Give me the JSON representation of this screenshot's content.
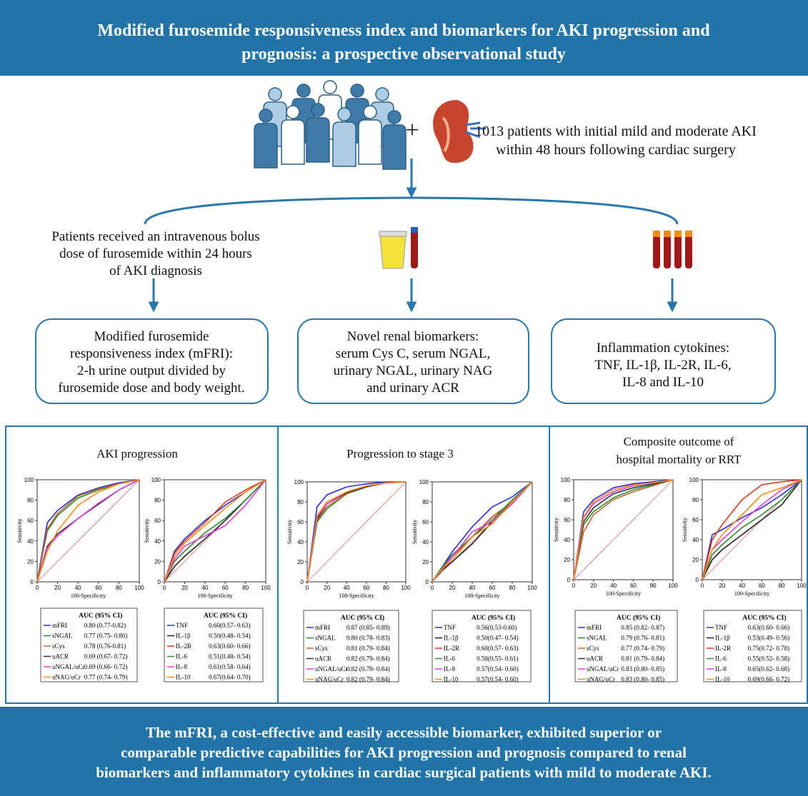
{
  "header": {
    "title": [
      "Modified furosemide responsiveness index and biomarkers for AKI progression and",
      "prognosis: a prospective observational study"
    ]
  },
  "cohort": {
    "plus": "+",
    "text": [
      "1013 patients with initial mild and moderate AKI",
      "within 48 hours following cardiac surgery"
    ]
  },
  "branches": [
    {
      "description": [
        "Patients received an intravenous bolus",
        "dose of furosemide within 24 hours",
        "of AKI diagnosis"
      ],
      "box": [
        "Modified furosemide",
        "responsiveness index (mFRI):",
        "2-h urine output divided by",
        "furosemide dose and body weight."
      ]
    },
    {
      "box": [
        "Novel renal biomarkers:",
        "serum Cys C, serum NGAL,",
        "urinary NGAL, urinary NAG",
        "and urinary ACR"
      ]
    },
    {
      "box": [
        "Inflammation cytokines:",
        "TNF, IL-1β,  IL-2R, IL-6,",
        "IL-8  and IL-10"
      ]
    }
  ],
  "panels": [
    {
      "title": [
        "AKI progression"
      ],
      "charts": [
        {
          "type": "line",
          "xlabel": "100-Specificity",
          "ylabel": "Sensitivity",
          "legend_title": "AUC (95% CI)",
          "x": [
            0,
            10,
            20,
            40,
            60,
            80,
            100
          ],
          "xlim": [
            0,
            100
          ],
          "ylim": [
            0,
            100
          ],
          "xticks": [
            0,
            20,
            40,
            60,
            80,
            100
          ],
          "yticks": [
            0,
            20,
            40,
            60,
            80,
            100
          ],
          "series": [
            {
              "name": "mFRI",
              "color": "#2b2bd6",
              "auc": "0.80 (0.77-0.82)",
              "values": [
                0,
                58,
                70,
                85,
                92,
                97,
                100
              ]
            },
            {
              "name": "sNGAL",
              "color": "#2e8b2e",
              "auc": "0.77 (0.75- 0.80)",
              "values": [
                0,
                50,
                65,
                82,
                90,
                96,
                100
              ]
            },
            {
              "name": "sCys",
              "color": "#c8642a",
              "auc": "0.78 (0.76-0.81)",
              "values": [
                0,
                52,
                67,
                84,
                91,
                96,
                100
              ]
            },
            {
              "name": "uACR",
              "color": "#333333",
              "auc": "0.69 (0.67- 0.72)",
              "values": [
                0,
                35,
                47,
                62,
                76,
                90,
                100
              ]
            },
            {
              "name": "uNGAL/uCr",
              "color": "#e03ce0",
              "auc": "0.69 (0.66- 0.72)",
              "values": [
                0,
                33,
                45,
                62,
                77,
                90,
                100
              ]
            },
            {
              "name": "uNAG/uCr",
              "color": "#ff8c1a",
              "auc": "0.77 (0.74- 0.79)",
              "values": [
                0,
                30,
                50,
                75,
                88,
                96,
                100
              ]
            }
          ]
        },
        {
          "type": "line",
          "xlabel": "100-Specificity",
          "ylabel": "Sensitivity",
          "legend_title": "AUC (95% CI)",
          "x": [
            0,
            10,
            20,
            40,
            60,
            80,
            100
          ],
          "xlim": [
            0,
            100
          ],
          "ylim": [
            0,
            100
          ],
          "xticks": [
            0,
            20,
            40,
            60,
            80,
            100
          ],
          "yticks": [
            0,
            20,
            40,
            60,
            80,
            100
          ],
          "series": [
            {
              "name": "TNF",
              "color": "#2b2bd6",
              "auc": "0.60(0.57- 0.63)",
              "values": [
                0,
                30,
                42,
                60,
                75,
                88,
                100
              ]
            },
            {
              "name": "IL-1β",
              "color": "#222222",
              "auc": "0.50(0.48- 0.54)",
              "values": [
                0,
                15,
                25,
                42,
                60,
                80,
                100
              ]
            },
            {
              "name": "IL-2R",
              "color": "#d83a1e",
              "auc": "0.63(0.60- 0.66)",
              "values": [
                0,
                28,
                40,
                58,
                78,
                90,
                100
              ]
            },
            {
              "name": "IL-6",
              "color": "#2e8b2e",
              "auc": "0.51(0.48- 0.54)",
              "values": [
                0,
                20,
                30,
                48,
                62,
                80,
                100
              ]
            },
            {
              "name": "IL-8",
              "color": "#e03ce0",
              "auc": "0.61(0.58- 0.64)",
              "values": [
                0,
                22,
                35,
                45,
                55,
                75,
                100
              ]
            },
            {
              "name": "IL-10",
              "color": "#ff8c1a",
              "auc": "0.67(0.64- 0.70)",
              "values": [
                0,
                25,
                38,
                55,
                72,
                88,
                100
              ]
            }
          ]
        }
      ]
    },
    {
      "title": [
        "Progression to stage 3"
      ],
      "charts": [
        {
          "type": "line",
          "xlabel": "100-Specificity",
          "ylabel": "Sensitivity",
          "legend_title": "AUC (95% CI)",
          "x": [
            0,
            10,
            20,
            40,
            60,
            80,
            100
          ],
          "xlim": [
            0,
            100
          ],
          "ylim": [
            0,
            100
          ],
          "xticks": [
            0,
            20,
            40,
            60,
            80,
            100
          ],
          "yticks": [
            0,
            20,
            40,
            60,
            80,
            100
          ],
          "series": [
            {
              "name": "mFRI",
              "color": "#2b2bd6",
              "auc": "0.87 (0.85- 0.89)",
              "values": [
                0,
                75,
                87,
                95,
                98,
                100,
                100
              ]
            },
            {
              "name": "sNGAL",
              "color": "#2e8b2e",
              "auc": "0.80 (0.78- 0.83)",
              "values": [
                0,
                60,
                73,
                88,
                95,
                99,
                100
              ]
            },
            {
              "name": "sCys",
              "color": "#c8642a",
              "auc": "0.81 (0.79- 0.84)",
              "values": [
                0,
                62,
                75,
                88,
                96,
                99,
                100
              ]
            },
            {
              "name": "uACR",
              "color": "#333333",
              "auc": "0.82 (0.79- 0.84)",
              "values": [
                0,
                63,
                78,
                89,
                95,
                99,
                100
              ]
            },
            {
              "name": "uNGAL/uCr",
              "color": "#e03ce0",
              "auc": "0.82 (0.79- 0.84)",
              "values": [
                0,
                65,
                78,
                90,
                96,
                99,
                100
              ]
            },
            {
              "name": "uNAG/uCr",
              "color": "#ff8c1a",
              "auc": "0.82 (0.79- 0.84)",
              "values": [
                0,
                66,
                80,
                90,
                96,
                99,
                100
              ]
            }
          ]
        },
        {
          "type": "line",
          "xlabel": "100-Specificity",
          "ylabel": "Sensitivity",
          "legend_title": "AUC (95% CI)",
          "x": [
            0,
            10,
            20,
            40,
            60,
            80,
            100
          ],
          "xlim": [
            0,
            100
          ],
          "ylim": [
            0,
            100
          ],
          "xticks": [
            0,
            20,
            40,
            60,
            80,
            100
          ],
          "yticks": [
            0,
            20,
            40,
            60,
            80,
            100
          ],
          "series": [
            {
              "name": "TNF",
              "color": "#2b2bd6",
              "auc": "0.56(0.53-0.60)",
              "values": [
                0,
                15,
                30,
                55,
                75,
                85,
                100
              ]
            },
            {
              "name": "IL-1β",
              "color": "#222222",
              "auc": "0.50(0.47- 0.54)",
              "values": [
                0,
                12,
                20,
                38,
                60,
                80,
                100
              ]
            },
            {
              "name": "IL-2R",
              "color": "#d83a1e",
              "auc": "0.60(0.57- 0.63)",
              "values": [
                0,
                14,
                25,
                45,
                65,
                80,
                100
              ]
            },
            {
              "name": "IL-6",
              "color": "#2e8b2e",
              "auc": "0.58(0.55- 0.61)",
              "values": [
                0,
                15,
                27,
                45,
                62,
                82,
                100
              ]
            },
            {
              "name": "IL-8",
              "color": "#e03ce0",
              "auc": "0.57(0.54- 0.60)",
              "values": [
                0,
                13,
                25,
                50,
                60,
                78,
                100
              ]
            },
            {
              "name": "IL-10",
              "color": "#ff8c1a",
              "auc": "0.57(0.54- 0.60)",
              "values": [
                0,
                13,
                22,
                45,
                58,
                80,
                100
              ]
            }
          ]
        }
      ]
    },
    {
      "title": [
        "Composite outcome of",
        "hospital mortality or RRT"
      ],
      "charts": [
        {
          "type": "line",
          "xlabel": "100-Specificity",
          "ylabel": "Sensitivity",
          "legend_title": "AUC (95% CI)",
          "x": [
            0,
            10,
            20,
            40,
            60,
            80,
            100
          ],
          "xlim": [
            0,
            100
          ],
          "ylim": [
            0,
            100
          ],
          "xticks": [
            0,
            20,
            40,
            60,
            80,
            100
          ],
          "yticks": [
            0,
            20,
            40,
            60,
            80,
            100
          ],
          "series": [
            {
              "name": "mFRI",
              "color": "#2b2bd6",
              "auc": "0.85 (0.82- 0.87)",
              "values": [
                0,
                68,
                80,
                92,
                96,
                98,
                100
              ]
            },
            {
              "name": "sNGAL",
              "color": "#2e8b2e",
              "auc": "0.79 (0.76- 0.81)",
              "values": [
                0,
                55,
                68,
                82,
                90,
                95,
                100
              ]
            },
            {
              "name": "sCys",
              "color": "#c8642a",
              "auc": "0.77 (0.74- 0.79)",
              "values": [
                0,
                48,
                65,
                80,
                88,
                94,
                100
              ]
            },
            {
              "name": "uACR",
              "color": "#333333",
              "auc": "0.81 (0.79- 0.84)",
              "values": [
                0,
                58,
                72,
                86,
                92,
                96,
                100
              ]
            },
            {
              "name": "uNGAL/uCr",
              "color": "#e03ce0",
              "auc": "0.83 (0.80- 0.85)",
              "values": [
                0,
                62,
                76,
                88,
                94,
                97,
                100
              ]
            },
            {
              "name": "uNAG/uCr",
              "color": "#ff8c1a",
              "auc": "0.83 (0.80- 0.85)",
              "values": [
                0,
                63,
                78,
                90,
                95,
                97,
                100
              ]
            }
          ]
        },
        {
          "type": "line",
          "xlabel": "100-Specificity",
          "ylabel": "Sensitivity",
          "legend_title": "AUC (95% CI)",
          "x": [
            0,
            10,
            20,
            40,
            60,
            80,
            100
          ],
          "xlim": [
            0,
            100
          ],
          "ylim": [
            0,
            100
          ],
          "xticks": [
            0,
            20,
            40,
            60,
            80,
            100
          ],
          "yticks": [
            0,
            20,
            40,
            60,
            80,
            100
          ],
          "series": [
            {
              "name": "TNF",
              "color": "#2b2bd6",
              "auc": "0.63(0.60- 0.66)",
              "values": [
                0,
                45,
                50,
                62,
                72,
                85,
                100
              ]
            },
            {
              "name": "IL-1β",
              "color": "#222222",
              "auc": "0.53(0.49- 0.56)",
              "values": [
                0,
                20,
                30,
                45,
                60,
                75,
                100
              ]
            },
            {
              "name": "IL-2R",
              "color": "#d83a1e",
              "auc": "0.75(0.72- 0.78)",
              "values": [
                0,
                40,
                55,
                80,
                95,
                98,
                100
              ]
            },
            {
              "name": "IL-6",
              "color": "#2e8b2e",
              "auc": "0.55(0.52- 0.58)",
              "values": [
                0,
                25,
                35,
                52,
                65,
                80,
                100
              ]
            },
            {
              "name": "IL-8",
              "color": "#e03ce0",
              "auc": "0.65(0.62- 0.68)",
              "values": [
                0,
                30,
                40,
                58,
                75,
                90,
                100
              ]
            },
            {
              "name": "IL-10",
              "color": "#ff8c1a",
              "auc": "0.69(0.66- 0.72)",
              "values": [
                0,
                30,
                45,
                65,
                85,
                92,
                100
              ]
            }
          ]
        }
      ]
    }
  ],
  "footer": {
    "text": [
      "The mFRI, a cost-effective and easily accessible biomarker, exhibited superior or",
      "comparable predictive capabilities for AKI progression and prognosis compared to renal",
      "biomarkers and inflammatory cytokines  in cardiac surgical patients with mild to moderate AKI."
    ]
  }
}
